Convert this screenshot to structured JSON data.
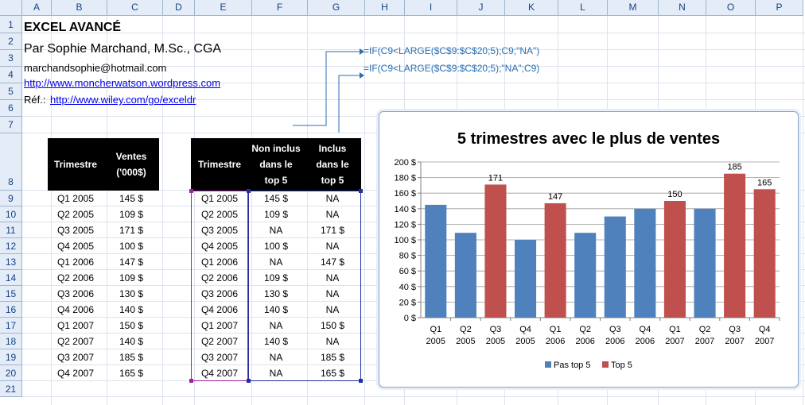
{
  "columns": [
    "A",
    "B",
    "C",
    "D",
    "E",
    "F",
    "G",
    "H",
    "I",
    "J",
    "K",
    "L",
    "M",
    "N",
    "O",
    "P"
  ],
  "rows": [
    "1",
    "2",
    "3",
    "4",
    "5",
    "6",
    "7",
    "8",
    "9",
    "10",
    "11",
    "12",
    "13",
    "14",
    "15",
    "16",
    "17",
    "18",
    "19",
    "20",
    "21"
  ],
  "header": {
    "title": "EXCEL AVANCÉ",
    "author": "Par Sophie Marchand, M.Sc., CGA",
    "email": "marchandsophie@hotmail.com",
    "website": "http://www.moncherwatson.wordpress.com",
    "ref_label": "Réf.:",
    "ref_link": "http://www.wiley.com/go/exceldr"
  },
  "formulas": {
    "f1": "=IF(C9<LARGE($C$9:$C$20;5);C9;\"NA\")",
    "f2": "=IF(C9<LARGE($C$9:$C$20;5);\"NA\";C9)"
  },
  "table1": {
    "headers": [
      "Trimestre",
      "Ventes\n('000$)"
    ],
    "rows": [
      [
        "Q1 2005",
        "145 $"
      ],
      [
        "Q2 2005",
        "109 $"
      ],
      [
        "Q3 2005",
        "171 $"
      ],
      [
        "Q4 2005",
        "100 $"
      ],
      [
        "Q1 2006",
        "147 $"
      ],
      [
        "Q2 2006",
        "109 $"
      ],
      [
        "Q3 2006",
        "130 $"
      ],
      [
        "Q4 2006",
        "140 $"
      ],
      [
        "Q1 2007",
        "150 $"
      ],
      [
        "Q2 2007",
        "140 $"
      ],
      [
        "Q3 2007",
        "185 $"
      ],
      [
        "Q4 2007",
        "165 $"
      ]
    ]
  },
  "table2": {
    "headers": [
      "Trimestre",
      "Non inclus\ndans le\ntop 5",
      "Inclus\ndans le\ntop 5"
    ],
    "rows": [
      [
        "Q1 2005",
        "145 $",
        "NA"
      ],
      [
        "Q2 2005",
        "109 $",
        "NA"
      ],
      [
        "Q3 2005",
        "NA",
        "171 $"
      ],
      [
        "Q4 2005",
        "100 $",
        "NA"
      ],
      [
        "Q1 2006",
        "NA",
        "147 $"
      ],
      [
        "Q2 2006",
        "109 $",
        "NA"
      ],
      [
        "Q3 2006",
        "130 $",
        "NA"
      ],
      [
        "Q4 2006",
        "140 $",
        "NA"
      ],
      [
        "Q1 2007",
        "NA",
        "150 $"
      ],
      [
        "Q2 2007",
        "140 $",
        "NA"
      ],
      [
        "Q3 2007",
        "NA",
        "185 $"
      ],
      [
        "Q4 2007",
        "NA",
        "165 $"
      ]
    ]
  },
  "chart_data": {
    "type": "bar",
    "title": "5 trimestres avec le plus de ventes",
    "categories": [
      "Q1\n2005",
      "Q2\n2005",
      "Q3\n2005",
      "Q4\n2005",
      "Q1\n2006",
      "Q2\n2006",
      "Q3\n2006",
      "Q4\n2006",
      "Q1\n2007",
      "Q2\n2007",
      "Q3\n2007",
      "Q4\n2007"
    ],
    "series": [
      {
        "name": "Pas top 5",
        "color": "#4f81bd",
        "values": [
          145,
          109,
          null,
          100,
          null,
          109,
          130,
          140,
          null,
          140,
          null,
          null
        ]
      },
      {
        "name": "Top 5",
        "color": "#c0504d",
        "values": [
          null,
          null,
          171,
          null,
          147,
          null,
          null,
          null,
          150,
          null,
          185,
          165
        ]
      }
    ],
    "data_labels": [
      null,
      null,
      "171",
      null,
      "147",
      null,
      null,
      null,
      "150",
      null,
      "185",
      "165"
    ],
    "ylim": [
      0,
      200
    ],
    "yticks": [
      "0 $",
      "20 $",
      "40 $",
      "60 $",
      "80 $",
      "100 $",
      "120 $",
      "140 $",
      "160 $",
      "180 $",
      "200 $"
    ],
    "legend_position": "bottom",
    "grid": true
  }
}
